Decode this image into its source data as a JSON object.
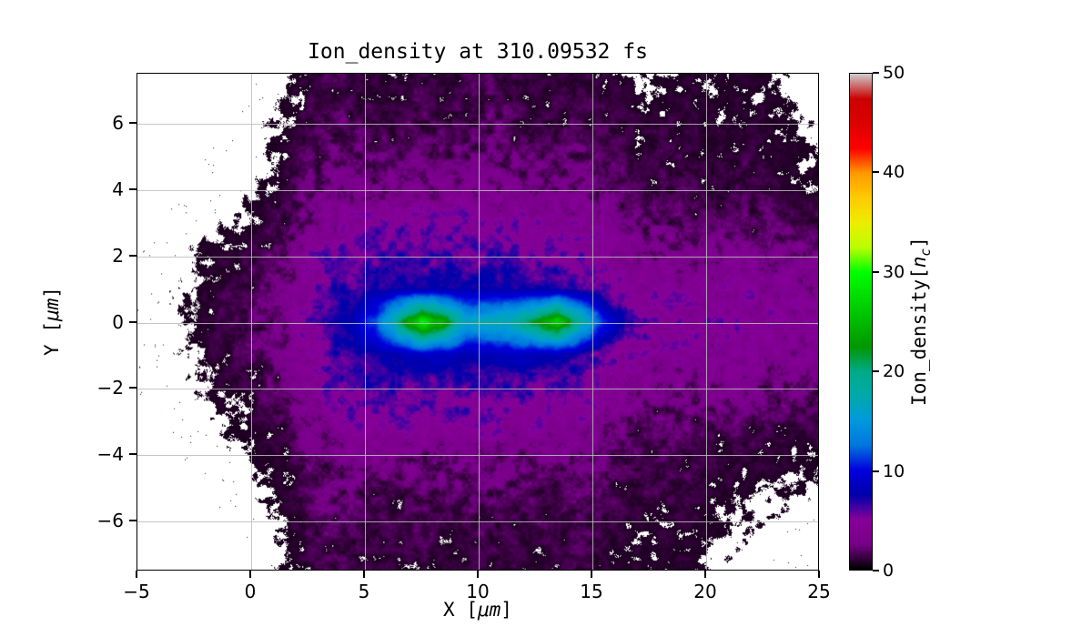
{
  "chart_data": {
    "type": "heatmap",
    "title": "Ion_density at 310.09532 fs",
    "xlabel": "X [μm]",
    "ylabel": "Y [μm]",
    "xlabel_parts": {
      "prefix": "X [",
      "unit": "μm",
      "suffix": "]"
    },
    "ylabel_parts": {
      "prefix": "Y [",
      "unit": "μm",
      "suffix": "]"
    },
    "xlim": [
      -5,
      25
    ],
    "ylim": [
      -7.5,
      7.5
    ],
    "x_ticks": [
      -5,
      0,
      5,
      10,
      15,
      20,
      25
    ],
    "x_tick_labels": [
      "−5",
      "0",
      "5",
      "10",
      "15",
      "20",
      "25"
    ],
    "y_ticks": [
      6,
      4,
      2,
      0,
      -2,
      -4,
      -6
    ],
    "y_tick_labels": [
      "6",
      "4",
      "2",
      "0",
      "−2",
      "−4",
      "−6"
    ],
    "grid": true,
    "grid_x": [
      0,
      5,
      10,
      15,
      20
    ],
    "grid_y": [
      6,
      4,
      2,
      0,
      -2,
      -4,
      -6
    ],
    "colormap": "nipy_spectral",
    "colormap_stops": [
      [
        0.0,
        "#000000"
      ],
      [
        0.05,
        "#770088"
      ],
      [
        0.1,
        "#880099"
      ],
      [
        0.15,
        "#0000aa"
      ],
      [
        0.2,
        "#0000dd"
      ],
      [
        0.25,
        "#0077dd"
      ],
      [
        0.3,
        "#0099dd"
      ],
      [
        0.35,
        "#00aaaa"
      ],
      [
        0.4,
        "#00aa88"
      ],
      [
        0.45,
        "#009900"
      ],
      [
        0.5,
        "#00bb00"
      ],
      [
        0.55,
        "#00dd00"
      ],
      [
        0.6,
        "#00ff00"
      ],
      [
        0.65,
        "#bbff00"
      ],
      [
        0.7,
        "#eeee00"
      ],
      [
        0.75,
        "#ffcc00"
      ],
      [
        0.8,
        "#ff9900"
      ],
      [
        0.85,
        "#ff0000"
      ],
      [
        0.9,
        "#dd0000"
      ],
      [
        0.95,
        "#cc0000"
      ],
      [
        1.0,
        "#cccccc"
      ]
    ],
    "colorbar": {
      "label": "Ion_density[n_c]",
      "label_parts": {
        "prefix": "Ion_density[",
        "var": "n",
        "sub": "c",
        "suffix": "]"
      },
      "ticks": [
        0,
        10,
        20,
        30,
        40,
        50
      ],
      "tick_labels": [
        "0",
        "10",
        "20",
        "30",
        "40",
        "50"
      ],
      "vmin": 0,
      "vmax": 50
    },
    "units": "n_c",
    "white_below": 0.5,
    "x_centers": [
      -4.5,
      -3.5,
      -2.5,
      -1.5,
      -0.5,
      0.5,
      1.5,
      2.5,
      3.5,
      4.5,
      5.5,
      6.5,
      7.5,
      8.5,
      9.5,
      10.5,
      11.5,
      12.5,
      13.5,
      14.5,
      15.5,
      16.5,
      17.5,
      18.5,
      19.5,
      20.5,
      21.5,
      22.5,
      23.5,
      24.5
    ],
    "y_centers": [
      7,
      6,
      5,
      4,
      3,
      2,
      1,
      0,
      -1,
      -2,
      -3,
      -4,
      -5,
      -6,
      -7
    ],
    "density_grid": [
      [
        0,
        0,
        0,
        0,
        0,
        0.2,
        0.4,
        1,
        1.5,
        1.2,
        1,
        1,
        1.2,
        1,
        1.2,
        1.5,
        1.2,
        1,
        1,
        1.2,
        1,
        0.8,
        0.4,
        0.6,
        0.8,
        0.6,
        0.7,
        0.6,
        0.4,
        0.3
      ],
      [
        0,
        0,
        0,
        0,
        0.1,
        0.3,
        0.6,
        1.2,
        1.8,
        1.5,
        1.2,
        1.2,
        1.5,
        1.2,
        1.5,
        1.8,
        1.5,
        1.2,
        1.2,
        1.5,
        1.2,
        1,
        0.9,
        1,
        0.9,
        0.7,
        0.8,
        0.9,
        0.6,
        0.4
      ],
      [
        0,
        0,
        0,
        0.1,
        0.1,
        0.4,
        0.8,
        1.5,
        2,
        2,
        1.8,
        1.8,
        2,
        1.8,
        2,
        2,
        2,
        1.8,
        1.5,
        1.8,
        1.5,
        1.2,
        1,
        1.2,
        1,
        0.9,
        1.2,
        1,
        0.7,
        0.5
      ],
      [
        0,
        0,
        0.1,
        0.1,
        0.2,
        0.6,
        1,
        2,
        2.5,
        3,
        2.8,
        2.8,
        3,
        2.8,
        3,
        3,
        2.8,
        2.5,
        2.5,
        2.5,
        2,
        1.5,
        1.2,
        1.3,
        1.2,
        1,
        1.3,
        1.2,
        0.9,
        0.8
      ],
      [
        0,
        0.1,
        0.2,
        0.3,
        0.5,
        1,
        1.5,
        3,
        4,
        4.5,
        5,
        5,
        5,
        5,
        5,
        5,
        4.5,
        4.5,
        4.5,
        4,
        3.5,
        2.5,
        1.8,
        1.8,
        1.8,
        1.6,
        1.8,
        1.8,
        1.5,
        1.4
      ],
      [
        0.1,
        0.2,
        0.4,
        0.8,
        1,
        1.5,
        2,
        4,
        5.5,
        6,
        6,
        6,
        6,
        6,
        6,
        6,
        6,
        5.5,
        5.5,
        5,
        4.5,
        3.5,
        3,
        3,
        3,
        3,
        3.2,
        3,
        2.8,
        2.6
      ],
      [
        0.1,
        0.3,
        0.5,
        1,
        1.2,
        1.8,
        2.5,
        4.5,
        6,
        6.5,
        7,
        7.5,
        7.5,
        7.5,
        7.5,
        7.5,
        7.5,
        7,
        7,
        6.5,
        5.5,
        4.5,
        4,
        4,
        4,
        4,
        4.2,
        4,
        3.8,
        3.6
      ],
      [
        0.2,
        0.3,
        0.6,
        1,
        1.5,
        2,
        3,
        5,
        6.5,
        8,
        12,
        20,
        28,
        24,
        16,
        17,
        18,
        22,
        27,
        19,
        11,
        7,
        5,
        4.8,
        4.6,
        4.5,
        4.4,
        4.3,
        4.2,
        4
      ],
      [
        0.1,
        0.3,
        0.5,
        1,
        1.2,
        1.8,
        2.5,
        4.5,
        6,
        6.5,
        7.5,
        8,
        8.5,
        8.5,
        8,
        8,
        8.5,
        8,
        8,
        7,
        5.5,
        4.5,
        4,
        4,
        4,
        3.8,
        4,
        3.8,
        3.6,
        3.4
      ],
      [
        0.1,
        0.2,
        0.4,
        0.8,
        1,
        1.5,
        2,
        4,
        5.5,
        6,
        6,
        6,
        6,
        6,
        6,
        6,
        6,
        5.5,
        5.5,
        5,
        4.5,
        3.5,
        3,
        3,
        3,
        2.8,
        3,
        2.8,
        2.6,
        2.4
      ],
      [
        0,
        0.1,
        0.2,
        0.4,
        0.6,
        1,
        1.5,
        3,
        4,
        4.5,
        5,
        5,
        5,
        5,
        5,
        5,
        4.5,
        4.5,
        4.5,
        4,
        3.5,
        2.5,
        1.8,
        1.8,
        1.8,
        1.6,
        1.6,
        1.5,
        1.4,
        1.3
      ],
      [
        0,
        0,
        0.1,
        0.2,
        0.3,
        0.6,
        1,
        2,
        2.5,
        3,
        2.8,
        2.8,
        2.8,
        2.8,
        2.8,
        2.8,
        2.8,
        2.5,
        2.5,
        2.5,
        2,
        1.5,
        1.3,
        1.4,
        1.3,
        1,
        1,
        0.9,
        0.8,
        0.7
      ],
      [
        0,
        0,
        0,
        0.1,
        0.2,
        0.4,
        0.8,
        1.5,
        2,
        2,
        1.8,
        1.5,
        1.8,
        1.8,
        2,
        2,
        1.8,
        1.5,
        1.5,
        1.8,
        1.5,
        1.2,
        1.2,
        1.3,
        1.2,
        0.8,
        0.7,
        0.6,
        0.5,
        0.4
      ],
      [
        0,
        0,
        0,
        0,
        0.1,
        0.3,
        0.6,
        1.2,
        1.8,
        1.5,
        1.2,
        1.2,
        1.5,
        1.2,
        1.5,
        1.5,
        1.2,
        1.2,
        1.2,
        1.5,
        1.2,
        1,
        0.9,
        1,
        0.9,
        0.6,
        0.5,
        0.4,
        0.3,
        0.2
      ],
      [
        0,
        0,
        0,
        0,
        0,
        0.2,
        0.4,
        1,
        1.5,
        1.2,
        1,
        1,
        1.2,
        1,
        1.2,
        1.2,
        1,
        1,
        1,
        1.2,
        1,
        0.8,
        0.7,
        0.8,
        0.7,
        0.4,
        0.3,
        0.3,
        0.2,
        0.1
      ]
    ]
  }
}
